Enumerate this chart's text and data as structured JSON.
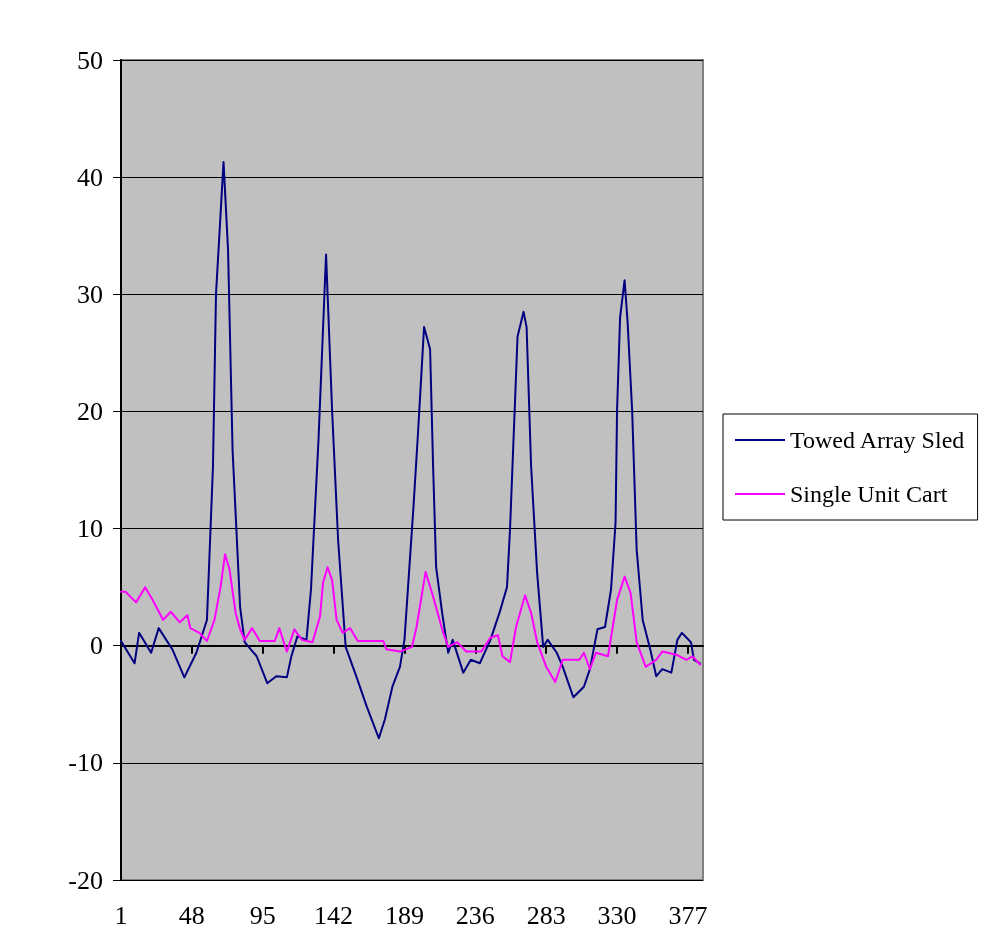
{
  "chart_data": {
    "type": "line",
    "xlim": [
      1,
      387
    ],
    "xticks": [
      1,
      48,
      95,
      142,
      189,
      236,
      283,
      330,
      377
    ],
    "ylim": [
      -20,
      50
    ],
    "yticks": [
      -20,
      -10,
      0,
      10,
      20,
      30,
      40,
      50
    ],
    "grid": "y",
    "legend": "right",
    "marker": "none",
    "line_style": "solid",
    "series": [
      {
        "name": "Towed Array Sled",
        "color": "#000080",
        "x": [
          1,
          10,
          13,
          21,
          26,
          35,
          43,
          51,
          58,
          62,
          64,
          69,
          72,
          75,
          80,
          83,
          91,
          98,
          104,
          111,
          114,
          118,
          124,
          127,
          132,
          137,
          141,
          145,
          150,
          157,
          164,
          172,
          176,
          181,
          186,
          189,
          195,
          198,
          202,
          206,
          208,
          210,
          214,
          218,
          221,
          228,
          233,
          239,
          246,
          252,
          257,
          259,
          264,
          268,
          270,
          273,
          277,
          281,
          284,
          290,
          294,
          301,
          308,
          312,
          317,
          322,
          326,
          329,
          330,
          332,
          335,
          337,
          340,
          343,
          347,
          352,
          356,
          360,
          366,
          370,
          373,
          379,
          381,
          385
        ],
        "values": [
          0.4,
          -1.5,
          1.1,
          -0.6,
          1.5,
          -0.3,
          -2.7,
          -0.6,
          2.2,
          15.3,
          30,
          41.3,
          33.8,
          16.7,
          3.3,
          0.3,
          -0.9,
          -3.2,
          -2.6,
          -2.7,
          -0.9,
          0.8,
          0.5,
          4.8,
          17.6,
          33.4,
          20.1,
          9,
          -0.1,
          -2.6,
          -5.2,
          -7.9,
          -6.3,
          -3.5,
          -1.8,
          0.5,
          11.9,
          18.2,
          27.2,
          25.3,
          15.3,
          6.7,
          2.8,
          -0.6,
          0.5,
          -2.3,
          -1.2,
          -1.5,
          0.5,
          2.8,
          5,
          9.9,
          26.4,
          28.5,
          27.2,
          15.3,
          6.2,
          -0.1,
          0.5,
          -0.6,
          -1.8,
          -4.4,
          -3.5,
          -2,
          1.4,
          1.6,
          4.8,
          10.5,
          20.1,
          28,
          31.2,
          27.6,
          20.1,
          8.2,
          2.2,
          -0.3,
          -2.6,
          -2,
          -2.3,
          0.5,
          1.1,
          0.3,
          -1.2,
          -1.5
        ]
      },
      {
        "name": "Single Unit Cart",
        "color": "#ff00ff",
        "x": [
          1,
          4,
          11,
          17,
          22,
          29,
          34,
          40,
          45,
          47,
          53,
          58,
          63,
          67,
          70,
          73,
          77,
          80,
          83,
          88,
          93,
          103,
          106,
          111,
          116,
          121,
          128,
          133,
          135,
          138,
          141,
          144,
          148,
          153,
          158,
          175,
          177,
          186,
          194,
          197,
          203,
          208,
          214,
          218,
          224,
          230,
          240,
          246,
          251,
          254,
          259,
          263,
          269,
          273,
          277,
          283,
          289,
          294,
          305,
          308,
          312,
          316,
          324,
          330,
          335,
          339,
          343,
          349,
          356,
          360,
          370,
          376,
          380,
          385
        ],
        "values": [
          4.6,
          4.6,
          3.7,
          5,
          3.9,
          2.2,
          2.9,
          2,
          2.6,
          1.5,
          1.1,
          0.4,
          2.2,
          5,
          7.8,
          6.5,
          2.8,
          1.4,
          0.5,
          1.5,
          0.4,
          0.4,
          1.5,
          -0.5,
          1.4,
          0.5,
          0.3,
          2.5,
          5.4,
          6.7,
          5.6,
          2.2,
          1.1,
          1.5,
          0.4,
          0.4,
          -0.3,
          -0.5,
          -0.1,
          1.6,
          6.3,
          4.2,
          1.4,
          -0.1,
          0.3,
          -0.5,
          -0.5,
          0.7,
          0.9,
          -0.9,
          -1.4,
          1.6,
          4.3,
          2.8,
          0.3,
          -1.8,
          -3.1,
          -1.2,
          -1.2,
          -0.6,
          -2,
          -0.6,
          -0.9,
          3.9,
          5.9,
          4.5,
          0.3,
          -1.8,
          -1.2,
          -0.5,
          -0.8,
          -1.2,
          -0.9,
          -1.6
        ]
      }
    ]
  }
}
